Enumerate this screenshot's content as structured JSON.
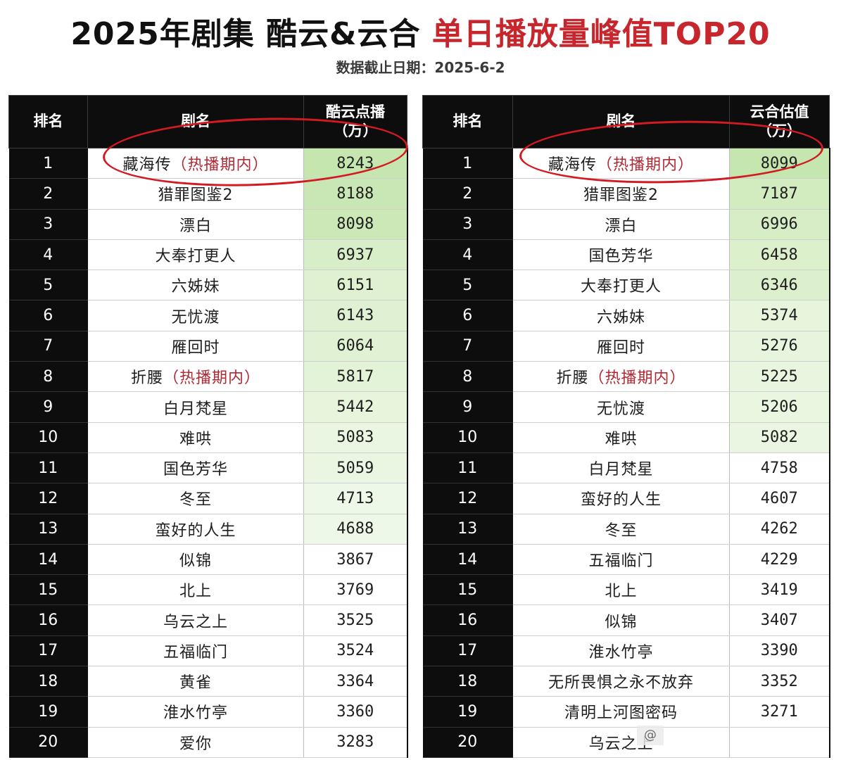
{
  "header": {
    "title_part1": "2025年剧集 酷云&云合 ",
    "title_part2": "单日播放量峰值TOP20",
    "subtitle": "数据截止日期：2025-6-2"
  },
  "colors": {
    "title_red": "#c7262c",
    "header_bg": "#0d0d0d",
    "green_highlight": "#c6e6b0",
    "annotation_red": "#d31a21"
  },
  "left_table": {
    "col_rank": "排名",
    "col_name": "剧名",
    "col_value_line1": "酷云点播",
    "col_value_line2": "（万）",
    "rows": [
      {
        "rank": "1",
        "name": "藏海传",
        "tag": "（热播期内）",
        "value": "8243",
        "shade": "#c6e6b0"
      },
      {
        "rank": "2",
        "name": "猎罪图鉴2",
        "tag": "",
        "value": "8188",
        "shade": "#c9e7b4"
      },
      {
        "rank": "3",
        "name": "漂白",
        "tag": "",
        "value": "8098",
        "shade": "#cce8b7"
      },
      {
        "rank": "4",
        "name": "大奉打更人",
        "tag": "",
        "value": "6937",
        "shade": "#d8eec8"
      },
      {
        "rank": "5",
        "name": "六姊妹",
        "tag": "",
        "value": "6151",
        "shade": "#dff1d1"
      },
      {
        "rank": "6",
        "name": "无忧渡",
        "tag": "",
        "value": "6143",
        "shade": "#dff1d2"
      },
      {
        "rank": "7",
        "name": "雁回时",
        "tag": "",
        "value": "6064",
        "shade": "#e0f2d3"
      },
      {
        "rank": "8",
        "name": "折腰",
        "tag": "（热播期内）",
        "value": "5817",
        "shade": "#e3f3d7"
      },
      {
        "rank": "9",
        "name": "白月梵星",
        "tag": "",
        "value": "5442",
        "shade": "#e6f5dc"
      },
      {
        "rank": "10",
        "name": "难哄",
        "tag": "",
        "value": "5083",
        "shade": "#eaf6e1"
      },
      {
        "rank": "11",
        "name": "国色芳华",
        "tag": "",
        "value": "5059",
        "shade": "#eaf6e1"
      },
      {
        "rank": "12",
        "name": "冬至",
        "tag": "",
        "value": "4713",
        "shade": "#eef8e8"
      },
      {
        "rank": "13",
        "name": "蛮好的人生",
        "tag": "",
        "value": "4688",
        "shade": "#eef8e8"
      },
      {
        "rank": "14",
        "name": "似锦",
        "tag": "",
        "value": "3867",
        "shade": "#ffffff"
      },
      {
        "rank": "15",
        "name": "北上",
        "tag": "",
        "value": "3769",
        "shade": "#ffffff"
      },
      {
        "rank": "16",
        "name": "乌云之上",
        "tag": "",
        "value": "3525",
        "shade": "#ffffff"
      },
      {
        "rank": "17",
        "name": "五福临门",
        "tag": "",
        "value": "3524",
        "shade": "#ffffff"
      },
      {
        "rank": "18",
        "name": "黄雀",
        "tag": "",
        "value": "3364",
        "shade": "#ffffff"
      },
      {
        "rank": "19",
        "name": "淮水竹亭",
        "tag": "",
        "value": "3360",
        "shade": "#ffffff"
      },
      {
        "rank": "20",
        "name": "爱你",
        "tag": "",
        "value": "3283",
        "shade": "#ffffff"
      }
    ]
  },
  "right_table": {
    "col_rank": "排名",
    "col_name": "剧名",
    "col_value_line1": "云合估值",
    "col_value_line2": "（万）",
    "rows": [
      {
        "rank": "1",
        "name": "藏海传",
        "tag": "（热播期内）",
        "value": "8099",
        "shade": "#c6e6b0"
      },
      {
        "rank": "2",
        "name": "猎罪图鉴2",
        "tag": "",
        "value": "7187",
        "shade": "#d2ebbf"
      },
      {
        "rank": "3",
        "name": "漂白",
        "tag": "",
        "value": "6996",
        "shade": "#d6edc5"
      },
      {
        "rank": "4",
        "name": "国色芳华",
        "tag": "",
        "value": "6458",
        "shade": "#dcf0cc"
      },
      {
        "rank": "5",
        "name": "大奉打更人",
        "tag": "",
        "value": "6346",
        "shade": "#ddf0ce"
      },
      {
        "rank": "6",
        "name": "六姊妹",
        "tag": "",
        "value": "5374",
        "shade": "#e6f5dc"
      },
      {
        "rank": "7",
        "name": "雁回时",
        "tag": "",
        "value": "5276",
        "shade": "#e8f5de"
      },
      {
        "rank": "8",
        "name": "折腰",
        "tag": "（热播期内）",
        "value": "5225",
        "shade": "#e8f5df"
      },
      {
        "rank": "9",
        "name": "无忧渡",
        "tag": "",
        "value": "5206",
        "shade": "#e9f6e0"
      },
      {
        "rank": "10",
        "name": "难哄",
        "tag": "",
        "value": "5082",
        "shade": "#eaf6e1"
      },
      {
        "rank": "11",
        "name": "白月梵星",
        "tag": "",
        "value": "4758",
        "shade": "#ffffff"
      },
      {
        "rank": "12",
        "name": "蛮好的人生",
        "tag": "",
        "value": "4607",
        "shade": "#ffffff"
      },
      {
        "rank": "13",
        "name": "冬至",
        "tag": "",
        "value": "4262",
        "shade": "#ffffff"
      },
      {
        "rank": "14",
        "name": "五福临门",
        "tag": "",
        "value": "4229",
        "shade": "#ffffff"
      },
      {
        "rank": "15",
        "name": "北上",
        "tag": "",
        "value": "3419",
        "shade": "#ffffff"
      },
      {
        "rank": "16",
        "name": "似锦",
        "tag": "",
        "value": "3407",
        "shade": "#ffffff"
      },
      {
        "rank": "17",
        "name": "淮水竹亭",
        "tag": "",
        "value": "3390",
        "shade": "#ffffff"
      },
      {
        "rank": "18",
        "name": "无所畏惧之永不放弃",
        "tag": "",
        "value": "3352",
        "shade": "#ffffff"
      },
      {
        "rank": "19",
        "name": "清明上河图密码",
        "tag": "",
        "value": "3271",
        "shade": "#ffffff"
      },
      {
        "rank": "20",
        "name": "乌云之上",
        "tag": "",
        "value": "",
        "shade": "#ffffff"
      }
    ]
  },
  "watermark": {
    "text": "@"
  }
}
